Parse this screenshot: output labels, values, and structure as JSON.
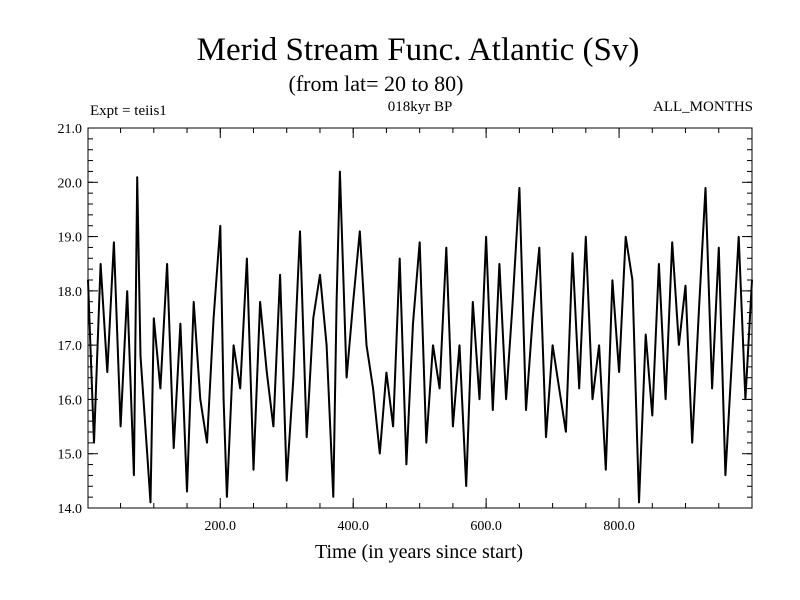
{
  "chart_data": {
    "type": "line",
    "title": "Merid Stream Func. Atlantic (Sv)",
    "subtitle": "(from lat= 20 to 80)",
    "experiment_label": "Expt = teiis1",
    "period_label": "018kyr BP",
    "months_label": "ALL_MONTHS",
    "xlabel": "Time (in years since start)",
    "ylabel": "",
    "xlim": [
      1,
      1000
    ],
    "ylim": [
      14.0,
      21.0
    ],
    "x_ticks": [
      200,
      400,
      600,
      800
    ],
    "x_tick_labels": [
      "200.0",
      "400.0",
      "600.0",
      "800.0"
    ],
    "y_ticks": [
      14,
      15,
      16,
      17,
      18,
      19,
      20,
      21
    ],
    "y_tick_labels": [
      "14.0",
      "15.0",
      "16.0",
      "17.0",
      "18.0",
      "19.0",
      "20.0",
      "21.0"
    ],
    "grid": false,
    "legend": "none",
    "line_color": "#000000",
    "series": [
      {
        "x": [
          1,
          10,
          20,
          30,
          40,
          50,
          60,
          70,
          75,
          80,
          90,
          95,
          100,
          110,
          120,
          130,
          140,
          150,
          160,
          170,
          180,
          190,
          200,
          205,
          210,
          220,
          230,
          240,
          250,
          260,
          270,
          280,
          290,
          300,
          310,
          320,
          330,
          340,
          350,
          360,
          370,
          375,
          380,
          390,
          400,
          410,
          420,
          430,
          440,
          450,
          460,
          470,
          480,
          490,
          500,
          510,
          520,
          530,
          540,
          550,
          560,
          570,
          580,
          590,
          600,
          610,
          620,
          630,
          640,
          650,
          660,
          670,
          680,
          690,
          700,
          710,
          720,
          730,
          740,
          750,
          760,
          770,
          780,
          790,
          800,
          810,
          820,
          830,
          840,
          850,
          860,
          870,
          880,
          890,
          900,
          910,
          920,
          930,
          940,
          950,
          960,
          970,
          980,
          990,
          1000
        ],
        "values": [
          18.2,
          15.2,
          18.5,
          16.5,
          18.9,
          15.5,
          18.0,
          14.6,
          20.1,
          16.8,
          15.0,
          14.1,
          17.5,
          16.2,
          18.5,
          15.1,
          17.4,
          14.3,
          17.8,
          16.0,
          15.2,
          17.5,
          19.2,
          16.0,
          14.2,
          17.0,
          16.2,
          18.6,
          14.7,
          17.8,
          16.5,
          15.5,
          18.3,
          14.5,
          16.4,
          19.1,
          15.3,
          17.5,
          18.3,
          17.0,
          14.2,
          17.8,
          20.2,
          16.4,
          17.8,
          19.1,
          17.0,
          16.2,
          15.0,
          16.5,
          15.5,
          18.6,
          14.8,
          17.4,
          18.9,
          15.2,
          17.0,
          16.2,
          18.8,
          15.5,
          17.0,
          14.4,
          17.8,
          16.0,
          19.0,
          15.8,
          18.5,
          16.0,
          17.8,
          19.9,
          15.8,
          17.5,
          18.8,
          15.3,
          17.0,
          16.2,
          15.4,
          18.7,
          16.2,
          19.0,
          16.0,
          17.0,
          14.7,
          18.2,
          16.5,
          19.0,
          18.2,
          14.1,
          17.2,
          15.7,
          18.5,
          16.0,
          18.9,
          17.0,
          18.1,
          15.2,
          17.6,
          19.9,
          16.2,
          18.8,
          14.6,
          16.8,
          19.0,
          16.0,
          18.2
        ]
      }
    ]
  }
}
